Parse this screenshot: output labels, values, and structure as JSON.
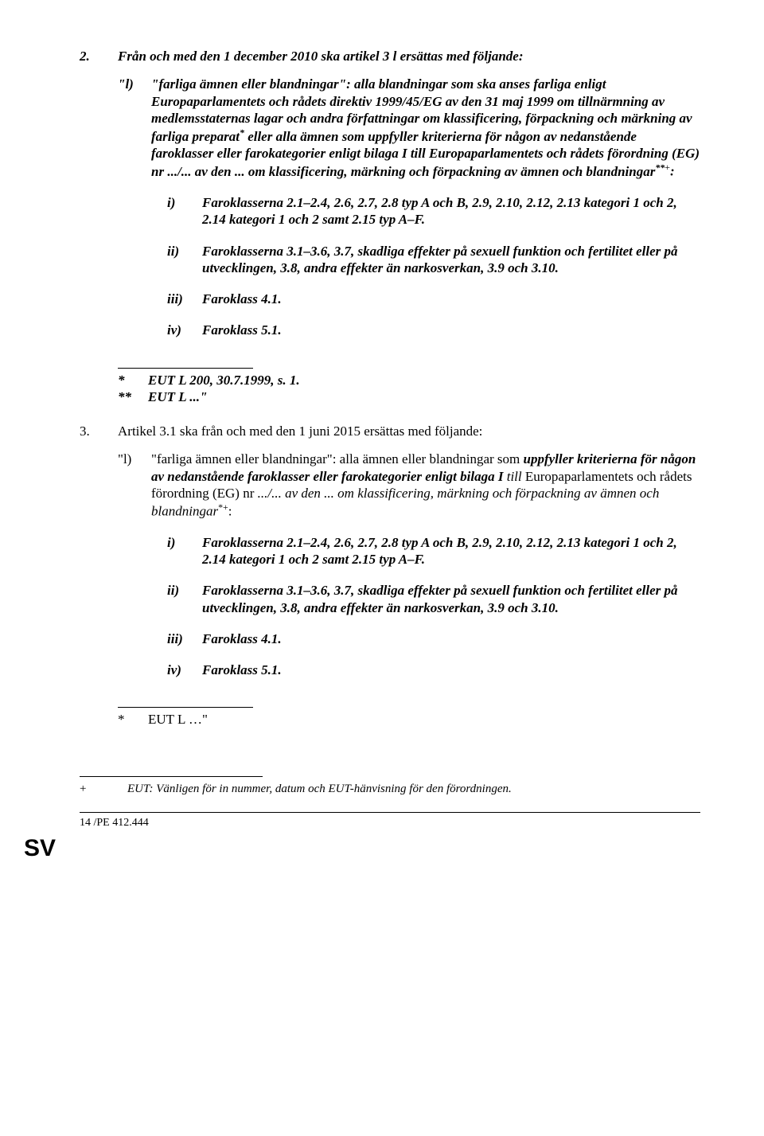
{
  "items": [
    {
      "num": "2.",
      "intro_plain": "Från och med den 1 december 2010 ska artikel 3 l ersättas med följande:",
      "sub": {
        "num": "\"l)",
        "body_html": "<span class=\"bold-it\">\"farliga ämnen eller blandningar\": alla blandningar som ska anses farliga enligt Europaparlamentets och rådets direktiv 1999/45/EG av den 31 maj 1999 om tillnärmning av medlemsstaternas lagar och andra författningar om klassificering, förpackning och märkning av farliga preparat<sup>*</sup> eller alla ämnen som uppfyller kriterierna för någon av nedanstående faroklasser eller farokategorier enligt bilaga I till Europaparlamentets och rådets förordning (EG) nr .../... av den ... om klassificering, märkning och förpackning av ämnen och blandningar<sup>**</sup></span><sup>+</sup><span class=\"bold-it\">:</span>",
        "points": [
          {
            "num": "i)",
            "text": "Faroklasserna 2.1–2.4, 2.6, 2.7, 2.8 typ A och B, 2.9, 2.10, 2.12, 2.13 kategori 1 och 2, 2.14 kategori 1 och 2 samt 2.15 typ A–F."
          },
          {
            "num": "ii)",
            "text": "Faroklasserna 3.1–3.6, 3.7, skadliga effekter på sexuell funktion och fertilitet eller på utvecklingen, 3.8, andra effekter än narkosverkan, 3.9 och 3.10."
          },
          {
            "num": "iii)",
            "text": "Faroklass 4.1."
          },
          {
            "num": "iv)",
            "text": "Faroklass 5.1."
          }
        ]
      },
      "footnotes": [
        {
          "mark": "*",
          "text": "EUT L 200, 30.7.1999, s. 1.",
          "style": "bold-it"
        },
        {
          "mark": "**",
          "text": "EUT L ...\"",
          "style": "bold-it"
        }
      ]
    },
    {
      "num": "3.",
      "intro_plain": "Artikel 3.1 ska från och med den 1 juni 2015 ersättas med följande:",
      "sub": {
        "num": "\"l)",
        "body_html": "\"farliga ämnen eller blandningar\": alla ämnen eller blandningar som <span class=\"bold-it\">uppfyller kriterierna för någon av nedanstående faroklasser eller farokategorier enligt bilaga I</span> <span class=\"ital\">till</span> Europaparlamentets och rådets förordning (EG) nr <span class=\"ital\">.../... av den ... om klassificering, märkning och förpackning av ämnen och blandningar</span><sup>*+</sup>:",
        "points": [
          {
            "num": "i)",
            "text": "Faroklasserna 2.1–2.4, 2.6, 2.7, 2.8 typ A och B, 2.9, 2.10, 2.12, 2.13 kategori 1 och 2, 2.14 kategori 1 och 2 samt 2.15 typ A–F."
          },
          {
            "num": "ii)",
            "text": "Faroklasserna 3.1–3.6, 3.7, skadliga effekter på sexuell funktion och fertilitet eller på utvecklingen, 3.8, andra effekter än narkosverkan, 3.9 och 3.10."
          },
          {
            "num": "iii)",
            "text": "Faroklass 4.1."
          },
          {
            "num": "iv)",
            "text": "Faroklass 5.1."
          }
        ]
      },
      "footnotes": [
        {
          "mark": "*",
          "text": "EUT L …\"",
          "style": "reg"
        }
      ]
    }
  ],
  "bottom_footnote": {
    "mark": "+",
    "text": "EUT: Vänligen för in nummer, datum och EUT-hänvisning för den förordningen."
  },
  "page_num": "14 /PE 412.444",
  "lang_code": "SV"
}
